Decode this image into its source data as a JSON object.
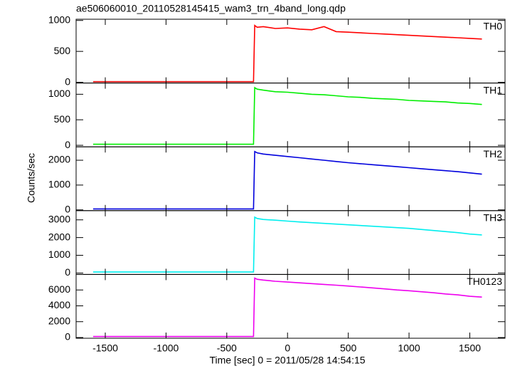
{
  "chart_data": {
    "type": "line",
    "title": "ae506060010_20110528145415_wam3_trn_4band_long.qdp",
    "xlabel": "Time [sec] 0 = 2011/05/28 14:54:15",
    "ylabel": "Counts/sec",
    "xlim": [
      -1740,
      1790
    ],
    "xticks": [
      -1500,
      -1000,
      -500,
      0,
      500,
      1000,
      1500
    ],
    "x": [
      -1600,
      -1200,
      -800,
      -400,
      -280,
      -270,
      -250,
      -200,
      -100,
      0,
      100,
      200,
      300,
      400,
      500,
      600,
      700,
      800,
      900,
      1000,
      1100,
      1200,
      1300,
      1400,
      1500,
      1600
    ],
    "panels": [
      {
        "name": "TH0",
        "color": "#ff0000",
        "ylim": [
          -12,
          1020
        ],
        "yticks": [
          0,
          500,
          1000
        ],
        "values": [
          10,
          10,
          10,
          10,
          10,
          920,
          890,
          900,
          870,
          880,
          860,
          850,
          900,
          820,
          810,
          800,
          790,
          780,
          770,
          760,
          750,
          740,
          730,
          720,
          710,
          700
        ]
      },
      {
        "name": "TH1",
        "color": "#00ee00",
        "ylim": [
          -30,
          1220
        ],
        "yticks": [
          0,
          500,
          1000
        ],
        "values": [
          20,
          20,
          20,
          20,
          20,
          1130,
          1100,
          1080,
          1050,
          1040,
          1020,
          1000,
          990,
          970,
          950,
          940,
          920,
          910,
          900,
          880,
          870,
          860,
          850,
          830,
          820,
          800
        ]
      },
      {
        "name": "TH2",
        "color": "#0000dd",
        "ylim": [
          -30,
          2540
        ],
        "yticks": [
          0,
          1000,
          2000
        ],
        "values": [
          40,
          40,
          40,
          40,
          40,
          2350,
          2300,
          2250,
          2200,
          2150,
          2100,
          2050,
          2000,
          1950,
          1900,
          1860,
          1820,
          1780,
          1740,
          1700,
          1660,
          1620,
          1580,
          1540,
          1490,
          1440
        ]
      },
      {
        "name": "TH3",
        "color": "#00eeee",
        "ylim": [
          -80,
          3520
        ],
        "yticks": [
          0,
          1000,
          2000,
          3000
        ],
        "values": [
          60,
          60,
          60,
          60,
          60,
          3150,
          3080,
          3020,
          2980,
          2930,
          2880,
          2840,
          2800,
          2760,
          2720,
          2680,
          2640,
          2600,
          2560,
          2520,
          2460,
          2400,
          2340,
          2280,
          2200,
          2150
        ]
      },
      {
        "name": "TH0123",
        "color": "#ee00ee",
        "ylim": [
          -90,
          7960
        ],
        "yticks": [
          0,
          2000,
          4000,
          6000
        ],
        "values": [
          130,
          130,
          130,
          130,
          130,
          7500,
          7350,
          7250,
          7100,
          7000,
          6900,
          6800,
          6700,
          6600,
          6500,
          6380,
          6260,
          6140,
          6000,
          5900,
          5780,
          5650,
          5500,
          5380,
          5200,
          5100
        ]
      }
    ]
  }
}
